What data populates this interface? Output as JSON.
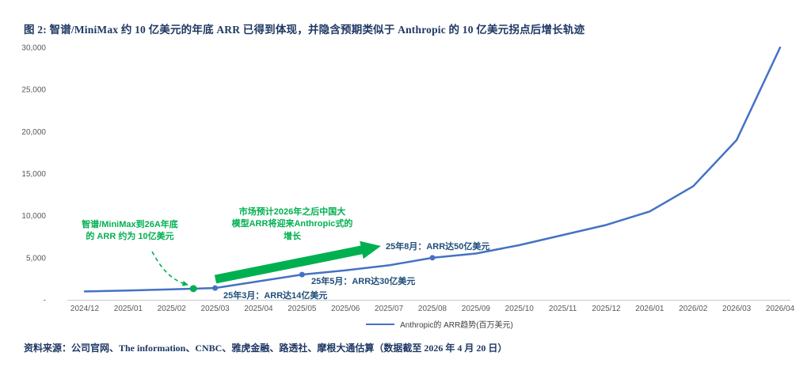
{
  "figure": {
    "source": "资料来源：公司官网、The information、CNBC、雅虎金融、路透社、摩根大通估算（数据截至 2026 年 4 月 20 日）"
  },
  "colors": {
    "line_blue": "#4472C4",
    "accent_green": "#00B050",
    "note_blue": "#1F4E79",
    "title_navy": "#1F3864"
  },
  "chart_data": {
    "type": "line",
    "title": "图 2: 智谱/MiniMax 约 10 亿美元的年底 ARR 已得到体现，并隐含预期类似于 Anthropic 的 10 亿美元拐点后增长轨迹",
    "xlabel": "",
    "ylabel": "",
    "x": [
      "2024/12",
      "2025/01",
      "2025/02",
      "2025/03",
      "2025/04",
      "2025/05",
      "2025/06",
      "2025/07",
      "2025/08",
      "2025/09",
      "2025/10",
      "2025/11",
      "2025/12",
      "2026/01",
      "2026/02",
      "2026/03",
      "2026/04"
    ],
    "series": [
      {
        "name": "Anthropic的 ARR趋势(百万美元)",
        "color": "#4472C4",
        "values": [
          1000,
          1100,
          1250,
          1400,
          2200,
          3000,
          3500,
          4100,
          5000,
          5500,
          6500,
          7700,
          8900,
          10500,
          13500,
          19000,
          30000
        ]
      }
    ],
    "ylim": [
      0,
      30000
    ],
    "yticks": [
      0,
      5000,
      10000,
      15000,
      20000,
      25000,
      30000
    ],
    "ytick_labels": [
      "-",
      "5,000",
      "10,000",
      "15,000",
      "20,000",
      "25,000",
      "30,000"
    ],
    "grid": false,
    "legend_position": "bottom",
    "markers": [
      {
        "name": "zhipu-minimax-dot",
        "xi": 2.5,
        "value": 1330,
        "color": "#00B050",
        "r": 4.5
      },
      {
        "name": "mar-2025-dot",
        "xi": 3,
        "value": 1400,
        "color": "#4472C4",
        "r": 3.5
      },
      {
        "name": "may-2025-dot",
        "xi": 5,
        "value": 3000,
        "color": "#4472C4",
        "r": 3.5
      },
      {
        "name": "aug-2025-dot",
        "xi": 8,
        "value": 5000,
        "color": "#4472C4",
        "r": 3.5
      }
    ],
    "annotations": {
      "zhipu_note": [
        "智谱/MiniMax到26A年底",
        "的 ARR 约为 10亿美元"
      ],
      "market_note": [
        "市场预计2026年之后中国大",
        "模型ARR将迎来Anthropic式的",
        "增长"
      ],
      "mar_note": "25年3月：ARR达14亿美元",
      "may_note": "25年5月：ARR达30亿美元",
      "aug_note": "25年8月：ARR达50亿美元"
    }
  }
}
